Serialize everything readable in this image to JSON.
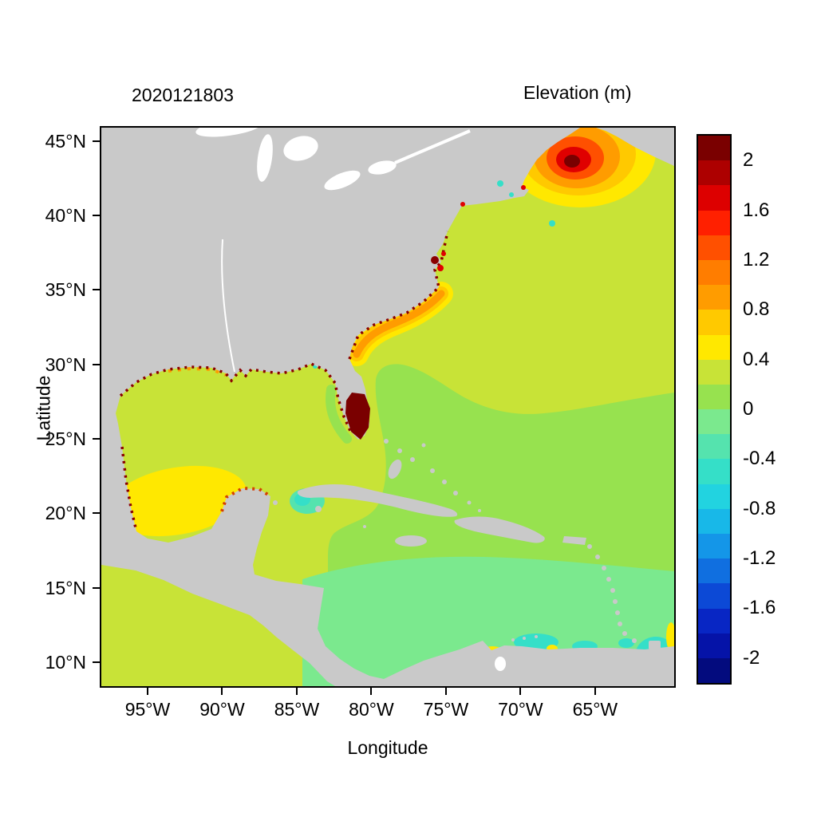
{
  "figure": {
    "left_title": "2020121803",
    "right_title": "Elevation (m)",
    "background": "#ffffff"
  },
  "chart_data": {
    "type": "heatmap",
    "title": "Elevation (m)",
    "run_label": "2020121803",
    "xlabel": "Longitude",
    "ylabel": "Latitude",
    "grid": false,
    "extent": {
      "lon_min": -98.1,
      "lon_max": -59.7,
      "lat_min": 8.4,
      "lat_max": 45.9
    },
    "x_ticks": [
      {
        "label": "95°W",
        "lon": -95
      },
      {
        "label": "90°W",
        "lon": -90
      },
      {
        "label": "85°W",
        "lon": -85
      },
      {
        "label": "80°W",
        "lon": -80
      },
      {
        "label": "75°W",
        "lon": -75
      },
      {
        "label": "70°W",
        "lon": -70
      },
      {
        "label": "65°W",
        "lon": -65
      }
    ],
    "y_ticks": [
      {
        "label": "45°N",
        "lat": 45
      },
      {
        "label": "40°N",
        "lat": 40
      },
      {
        "label": "35°N",
        "lat": 35
      },
      {
        "label": "30°N",
        "lat": 30
      },
      {
        "label": "25°N",
        "lat": 25
      },
      {
        "label": "20°N",
        "lat": 20
      },
      {
        "label": "15°N",
        "lat": 15
      },
      {
        "label": "10°N",
        "lat": 10
      }
    ],
    "colorbar": {
      "title": "Elevation (m)",
      "tick_labels": [
        "2",
        "1.6",
        "1.2",
        "0.8",
        "0.4",
        "0",
        "-0.4",
        "-0.8",
        "-1.2",
        "-1.6",
        "-2"
      ],
      "tick_values": [
        2,
        1.6,
        1.2,
        0.8,
        0.4,
        0,
        -0.4,
        -0.8,
        -1.2,
        -1.6,
        -2
      ],
      "level_min": -2.2,
      "level_max": 2.2,
      "level_step": 0.2,
      "colors_top_to_bottom": [
        "#7a0000",
        "#ad0000",
        "#dd0000",
        "#ff2000",
        "#ff5000",
        "#ff7d00",
        "#ff9c00",
        "#ffc900",
        "#ffe800",
        "#c8e337",
        "#97e24f",
        "#7be98e",
        "#55e3ae",
        "#35dfc8",
        "#22d3e0",
        "#18b8e8",
        "#1496e8",
        "#106fe0",
        "#0c49d6",
        "#0826c4",
        "#0513a8",
        "#030b7e"
      ]
    },
    "regions": [
      {
        "region": "Gulf of Maine / Bay of Fundy (~66°W, 44°N)",
        "elevation_m": "1.6 to >2",
        "note": "concentric red-orange-yellow high elevation hotspot"
      },
      {
        "region": "South Florida peninsula interior",
        "elevation_m": ">2",
        "note": "dark red patch"
      },
      {
        "region": "Chesapeake Bay area",
        "elevation_m": "1.6 to >2",
        "note": "small dark red specks"
      },
      {
        "region": "US Southeast shelf (GA/SC/NC coast)",
        "elevation_m": "0.6 to 1.0",
        "note": "orange-yellow band hugging coast"
      },
      {
        "region": "Southwest Gulf of Mexico (Bay of Campeche)",
        "elevation_m": "0.4 to 0.6",
        "note": "yellow patch"
      },
      {
        "region": "Gulf of Mexico and NW Atlantic (general)",
        "elevation_m": "0.2 to 0.4"
      },
      {
        "region": "Central and SE Atlantic, Bahamas",
        "elevation_m": "0 to 0.2"
      },
      {
        "region": "Southern Caribbean Sea",
        "elevation_m": "-0.2 to 0"
      },
      {
        "region": "Venezuela coast and SE corner patches",
        "elevation_m": "-0.6 to -0.2",
        "note": "cyan patches"
      },
      {
        "region": "Gulf, Atlantic and Yucatan coastlines",
        "elevation_m": ">2",
        "note": "dark red speckled fringe at coast"
      }
    ],
    "land_color": "#c9c9c9",
    "lake_color": "#ffffff"
  },
  "colors": {
    "land": "#c9c9c9",
    "lake": "#ffffff",
    "ocean_02_04": "#c8e337",
    "ocean_00_02": "#97e24f",
    "ocean_n02_00": "#7be98e",
    "teal": "#55e3ae",
    "cyan": "#35dfc8",
    "yellow": "#ffe800",
    "amber": "#ffc900",
    "orange": "#ff9c00",
    "orange_red": "#ff5000",
    "red": "#e00000",
    "dark_red": "#7a0000",
    "maroon_speckle": "#8a0000",
    "rust_speckle": "#d44000",
    "axis": "#000000"
  }
}
